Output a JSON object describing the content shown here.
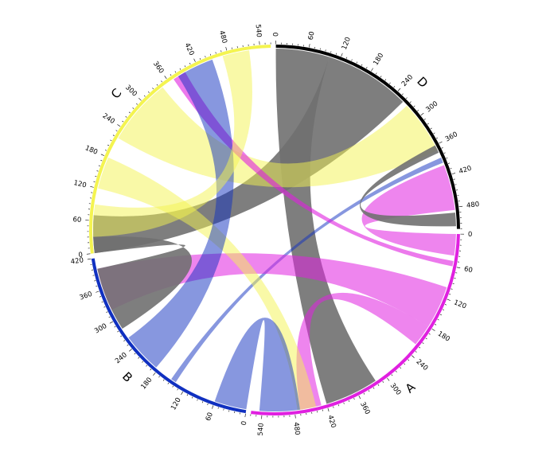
{
  "chart_data": {
    "type": "chord",
    "title": "",
    "groups": [
      {
        "name": "A",
        "label": "A",
        "total": 560,
        "color": "#E020E0"
      },
      {
        "name": "B",
        "label": "B",
        "total": 420,
        "color": "#1030C0"
      },
      {
        "name": "C",
        "label": "C",
        "total": 560,
        "color": "#F4F450"
      },
      {
        "name": "D",
        "label": "D",
        "total": 520,
        "color": "#000000"
      }
    ],
    "tick_step": 60,
    "chords": [
      {
        "from": "D",
        "to": "A",
        "from_range": [
          0,
          100
        ],
        "to_range": [
          320,
          420
        ],
        "color": "#707070",
        "opacity": 0.9
      },
      {
        "from": "D",
        "to": "C",
        "from_range": [
          100,
          260
        ],
        "to_range": [
          0,
          70
        ],
        "color": "#707070",
        "opacity": 0.9
      },
      {
        "from": "D",
        "to": "C",
        "from_range": [
          270,
          370
        ],
        "to_range": [
          220,
          345
        ],
        "color": "#F4F450",
        "opacity": 0.5
      },
      {
        "from": "D",
        "to": "B",
        "from_range": [
          385,
          395
        ],
        "to_range": [
          140,
          150
        ],
        "color": "#1030C0",
        "opacity": 0.5
      },
      {
        "from": "D",
        "to": "A",
        "from_range": [
          400,
          485
        ],
        "to_range": [
          0,
          40
        ],
        "color": "#E020E0",
        "opacity": 0.55
      },
      {
        "from": "D",
        "to": "D",
        "from_range": [
          490,
          515
        ],
        "to_range": [
          360,
          375
        ],
        "color": "#707070",
        "opacity": 0.9
      },
      {
        "from": "A",
        "to": "C",
        "from_range": [
          50,
          60
        ],
        "to_range": [
          370,
          395
        ],
        "color": "#E020E0",
        "opacity": 0.6
      },
      {
        "from": "A",
        "to": "B",
        "from_range": [
          100,
          180
        ],
        "to_range": [
          320,
          400
        ],
        "color": "#E020E0",
        "opacity": 0.55
      },
      {
        "from": "A",
        "to": "A",
        "from_range": [
          180,
          220
        ],
        "to_range": [
          430,
          470
        ],
        "color": "#E020E0",
        "opacity": 0.55
      },
      {
        "from": "A",
        "to": "C",
        "from_range": [
          440,
          475
        ],
        "to_range": [
          120,
          180
        ],
        "color": "#F4F450",
        "opacity": 0.5
      },
      {
        "from": "A",
        "to": "B",
        "from_range": [
          470,
          545
        ],
        "to_range": [
          0,
          60
        ],
        "color": "#1030C0",
        "opacity": 0.5
      },
      {
        "from": "B",
        "to": "C",
        "from_range": [
          185,
          260
        ],
        "to_range": [
          380,
          450
        ],
        "color": "#1030C0",
        "opacity": 0.5
      },
      {
        "from": "B",
        "to": "C",
        "from_range": [
          280,
          400
        ],
        "to_range": [
          0,
          30
        ],
        "color": "#707070",
        "opacity": 0.9
      },
      {
        "from": "C",
        "to": "C",
        "from_range": [
          30,
          90
        ],
        "to_range": [
          470,
          520
        ],
        "color": "#F4F450",
        "opacity": 0.5
      }
    ]
  }
}
